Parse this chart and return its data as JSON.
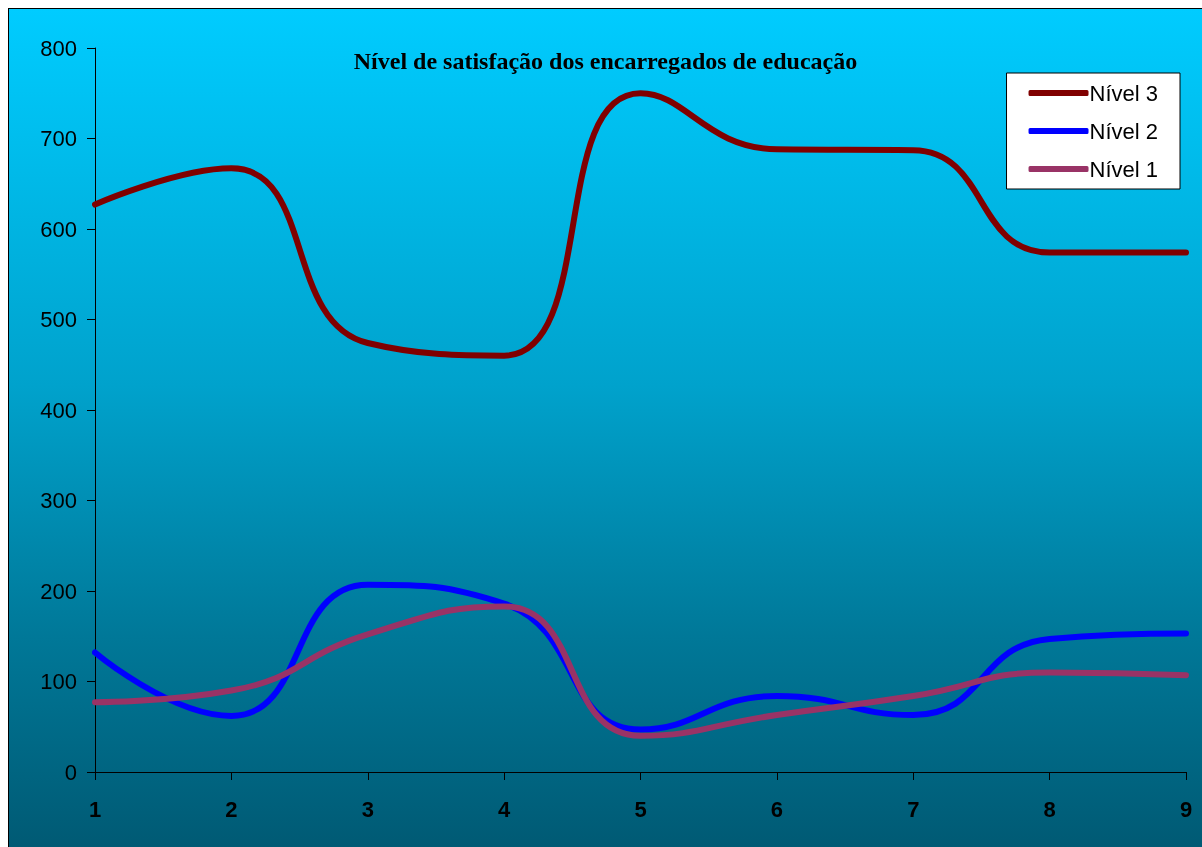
{
  "chart_data": {
    "type": "line",
    "title": "Nível de satisfação dos encarregados de educação",
    "categories": [
      "1",
      "2",
      "3",
      "4",
      "5",
      "6",
      "7",
      "8",
      "9"
    ],
    "series": [
      {
        "name": "Nível 3",
        "color": "#800000",
        "values": [
          627,
          667,
          474,
          460,
          750,
          688,
          687,
          574,
          574
        ]
      },
      {
        "name": "Nível 2",
        "color": "#0000ff",
        "values": [
          132,
          62,
          207,
          186,
          47,
          84,
          63,
          147,
          153
        ]
      },
      {
        "name": "Nível 1",
        "color": "#993366",
        "values": [
          77,
          90,
          152,
          183,
          40,
          63,
          84,
          110,
          107
        ]
      }
    ],
    "ylim": [
      0,
      800
    ],
    "yticks": [
      0,
      100,
      200,
      300,
      400,
      500,
      600,
      700,
      800
    ],
    "grid": false,
    "legend": "top right",
    "marker": "none",
    "line_style": "solid"
  }
}
